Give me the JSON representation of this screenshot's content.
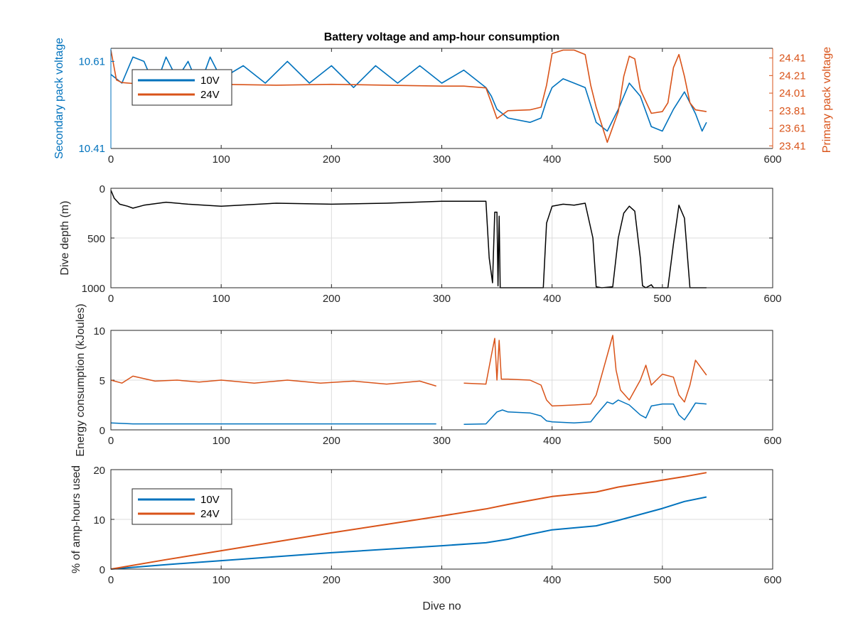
{
  "chart_data": [
    {
      "type": "line",
      "title": "Battery voltage and amp-hour consumption",
      "xlabel": "",
      "ylabel_left": "Secondary pack voltage",
      "ylabel_right": "Primary pack voltage",
      "xlim": [
        0,
        600
      ],
      "x_ticks": [
        "0",
        "100",
        "200",
        "300",
        "400",
        "500",
        "600"
      ],
      "ylim_left": [
        10.41,
        10.64
      ],
      "yticks_left": [
        "10.41",
        "10.61"
      ],
      "ylim_right": [
        23.38,
        24.52
      ],
      "yticks_right": [
        "23.41",
        "23.61",
        "23.81",
        "24.01",
        "24.21",
        "24.41"
      ],
      "grid": false,
      "legend": {
        "position": "top-left",
        "entries": [
          "10V",
          "24V"
        ]
      },
      "series": [
        {
          "name": "10V",
          "axis": "left",
          "color": "#0072BD",
          "x": [
            0,
            10,
            20,
            30,
            40,
            50,
            60,
            70,
            80,
            90,
            100,
            120,
            140,
            160,
            180,
            200,
            220,
            240,
            260,
            280,
            300,
            320,
            340,
            345,
            350,
            360,
            380,
            390,
            395,
            400,
            410,
            420,
            430,
            440,
            450,
            460,
            470,
            480,
            490,
            500,
            510,
            520,
            530,
            536,
            540
          ],
          "y": [
            10.58,
            10.56,
            10.62,
            10.61,
            10.55,
            10.62,
            10.57,
            10.61,
            10.55,
            10.62,
            10.57,
            10.6,
            10.56,
            10.61,
            10.56,
            10.6,
            10.55,
            10.6,
            10.56,
            10.6,
            10.56,
            10.59,
            10.55,
            10.53,
            10.5,
            10.48,
            10.47,
            10.48,
            10.52,
            10.55,
            10.57,
            10.56,
            10.55,
            10.47,
            10.45,
            10.5,
            10.56,
            10.53,
            10.46,
            10.45,
            10.5,
            10.54,
            10.49,
            10.45,
            10.47
          ]
        },
        {
          "name": "24V",
          "axis": "right",
          "color": "#D95319",
          "x": [
            0,
            5,
            10,
            20,
            30,
            50,
            100,
            150,
            200,
            250,
            300,
            320,
            340,
            345,
            350,
            360,
            380,
            390,
            395,
            400,
            410,
            420,
            430,
            435,
            440,
            450,
            460,
            465,
            470,
            475,
            480,
            490,
            500,
            505,
            510,
            515,
            520,
            525,
            530,
            540
          ],
          "y": [
            24.5,
            24.16,
            24.13,
            24.12,
            24.13,
            24.11,
            24.11,
            24.1,
            24.11,
            24.1,
            24.09,
            24.09,
            24.07,
            23.9,
            23.72,
            23.81,
            23.82,
            23.85,
            24.1,
            24.46,
            24.5,
            24.5,
            24.45,
            24.1,
            23.85,
            23.45,
            23.8,
            24.2,
            24.43,
            24.4,
            24.05,
            23.78,
            23.8,
            23.9,
            24.3,
            24.45,
            24.2,
            23.9,
            23.82,
            23.8
          ]
        }
      ]
    },
    {
      "type": "line",
      "title": "",
      "xlabel": "",
      "ylabel": "Dive depth (m)",
      "xlim": [
        0,
        600
      ],
      "ylim": [
        0,
        1000
      ],
      "y_reversed": true,
      "x_ticks": [
        "0",
        "100",
        "200",
        "300",
        "400",
        "500",
        "600"
      ],
      "y_ticks": [
        "0",
        "500",
        "1000"
      ],
      "grid": true,
      "series": [
        {
          "color": "#000000",
          "x": [
            0,
            3,
            8,
            15,
            20,
            30,
            50,
            70,
            100,
            150,
            200,
            250,
            300,
            340,
            343,
            346,
            348,
            350,
            351,
            352,
            353,
            355,
            360,
            380,
            392,
            395,
            400,
            410,
            420,
            430,
            437,
            440,
            445,
            455,
            460,
            465,
            470,
            475,
            480,
            482,
            485,
            490,
            492,
            495,
            505,
            510,
            515,
            520,
            525,
            530,
            540
          ],
          "y": [
            20,
            100,
            160,
            180,
            200,
            170,
            140,
            160,
            180,
            150,
            160,
            150,
            130,
            130,
            700,
            950,
            240,
            240,
            980,
            280,
            1000,
            1000,
            1000,
            1000,
            1000,
            350,
            180,
            160,
            170,
            150,
            500,
            990,
            1000,
            990,
            500,
            250,
            180,
            230,
            700,
            980,
            1000,
            970,
            1000,
            1000,
            1000,
            560,
            170,
            300,
            1000,
            1000,
            1000
          ]
        }
      ]
    },
    {
      "type": "line",
      "title": "",
      "xlabel": "",
      "ylabel": "Energy consumption (kJoules)",
      "xlim": [
        0,
        600
      ],
      "ylim": [
        0,
        10
      ],
      "x_ticks": [
        "0",
        "100",
        "200",
        "300",
        "400",
        "500",
        "600"
      ],
      "y_ticks": [
        "0",
        "5",
        "10"
      ],
      "grid": true,
      "series": [
        {
          "name": "24V",
          "color": "#D95319",
          "x": [
            0,
            10,
            20,
            40,
            60,
            80,
            100,
            130,
            160,
            190,
            220,
            250,
            280,
            295,
            300,
            320,
            340,
            345,
            348,
            350,
            352,
            354,
            360,
            380,
            390,
            395,
            400,
            420,
            435,
            440,
            445,
            450,
            455,
            458,
            462,
            470,
            480,
            485,
            490,
            500,
            510,
            515,
            520,
            525,
            530,
            540
          ],
          "y": [
            5.0,
            4.7,
            5.4,
            4.9,
            5.0,
            4.8,
            5.0,
            4.7,
            5.0,
            4.7,
            4.9,
            4.6,
            4.9,
            4.4,
            null,
            4.7,
            4.6,
            7.5,
            9.2,
            5.0,
            9.0,
            5.1,
            5.1,
            5.0,
            4.5,
            3.0,
            2.4,
            2.5,
            2.6,
            3.5,
            5.5,
            7.5,
            9.5,
            6.0,
            4.0,
            3.0,
            5.0,
            6.5,
            4.5,
            5.6,
            5.3,
            3.5,
            2.8,
            4.5,
            7.0,
            5.5
          ]
        },
        {
          "name": "10V",
          "color": "#0072BD",
          "x": [
            0,
            20,
            50,
            100,
            150,
            200,
            250,
            295,
            300,
            320,
            340,
            345,
            350,
            355,
            360,
            380,
            390,
            395,
            400,
            420,
            435,
            440,
            450,
            455,
            460,
            470,
            480,
            485,
            490,
            500,
            510,
            515,
            520,
            525,
            530,
            540
          ],
          "y": [
            0.7,
            0.6,
            0.6,
            0.6,
            0.6,
            0.6,
            0.6,
            0.6,
            null,
            0.55,
            0.6,
            1.2,
            1.8,
            2.0,
            1.8,
            1.7,
            1.4,
            0.9,
            0.8,
            0.7,
            0.8,
            1.5,
            2.8,
            2.6,
            3.0,
            2.5,
            1.5,
            1.2,
            2.4,
            2.6,
            2.6,
            1.5,
            1.0,
            1.8,
            2.7,
            2.6
          ]
        }
      ]
    },
    {
      "type": "line",
      "title": "",
      "xlabel": "Dive no",
      "ylabel": "% of amp-hours used",
      "xlim": [
        0,
        600
      ],
      "ylim": [
        0,
        20
      ],
      "x_ticks": [
        "0",
        "100",
        "200",
        "300",
        "400",
        "500",
        "600"
      ],
      "y_ticks": [
        "0",
        "10",
        "20"
      ],
      "grid": true,
      "legend": {
        "position": "top-left",
        "entries": [
          "10V",
          "24V"
        ]
      },
      "series": [
        {
          "name": "10V",
          "color": "#0072BD",
          "x": [
            0,
            50,
            100,
            150,
            200,
            250,
            300,
            340,
            360,
            380,
            400,
            440,
            460,
            480,
            500,
            520,
            540
          ],
          "y": [
            0,
            0.9,
            1.7,
            2.5,
            3.3,
            4.0,
            4.7,
            5.3,
            6.0,
            7.0,
            7.9,
            8.7,
            9.8,
            11.0,
            12.2,
            13.6,
            14.5
          ]
        },
        {
          "name": "24V",
          "color": "#D95319",
          "x": [
            0,
            50,
            100,
            150,
            200,
            250,
            300,
            340,
            360,
            380,
            400,
            440,
            460,
            480,
            500,
            520,
            540
          ],
          "y": [
            0,
            1.9,
            3.7,
            5.5,
            7.3,
            9.0,
            10.7,
            12.1,
            13.0,
            13.8,
            14.6,
            15.5,
            16.5,
            17.2,
            17.9,
            18.6,
            19.4
          ]
        }
      ]
    }
  ]
}
